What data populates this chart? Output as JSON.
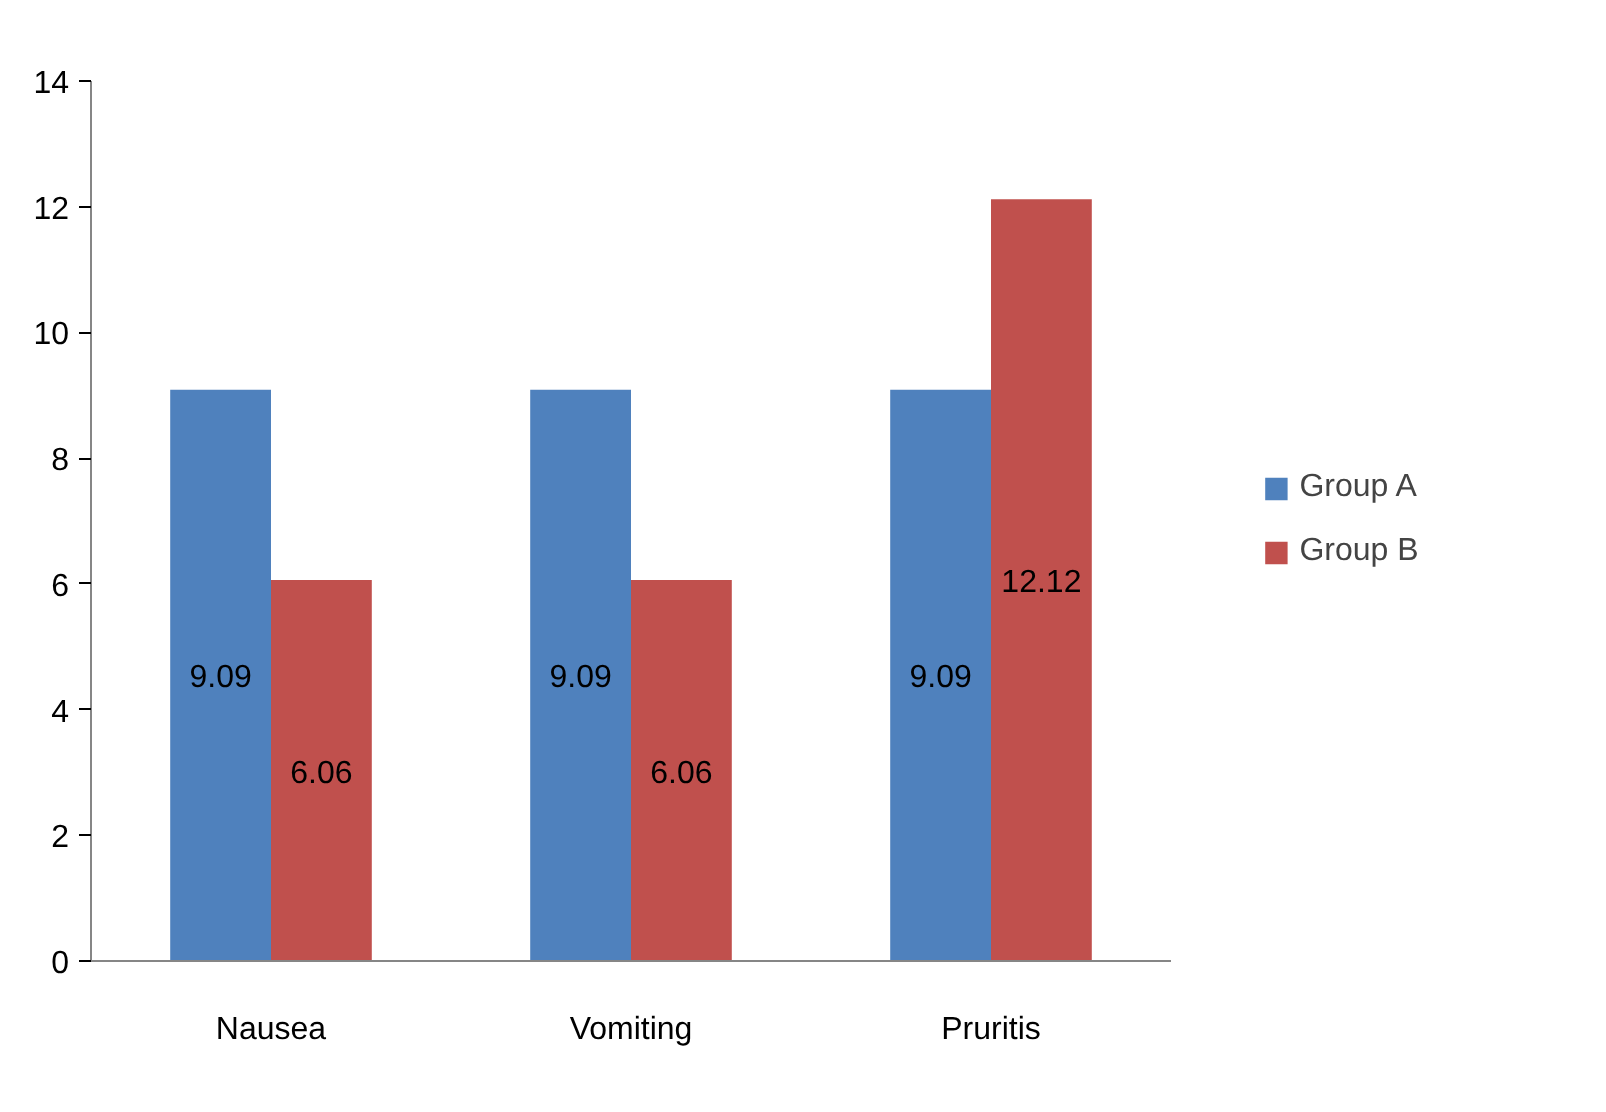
{
  "chart_data": {
    "type": "bar",
    "categories": [
      "Nausea",
      "Vomiting",
      "Pruritis"
    ],
    "series": [
      {
        "name": "Group A",
        "color": "#4f81bd",
        "values": [
          9.09,
          9.09,
          9.09
        ]
      },
      {
        "name": "Group B",
        "color": "#c0504d",
        "values": [
          6.06,
          6.06,
          12.12
        ]
      }
    ],
    "ylim": [
      0,
      14
    ],
    "yticks": [
      0,
      2,
      4,
      6,
      8,
      10,
      12,
      14
    ],
    "grid": false,
    "legend": "right",
    "data_labels": true
  }
}
